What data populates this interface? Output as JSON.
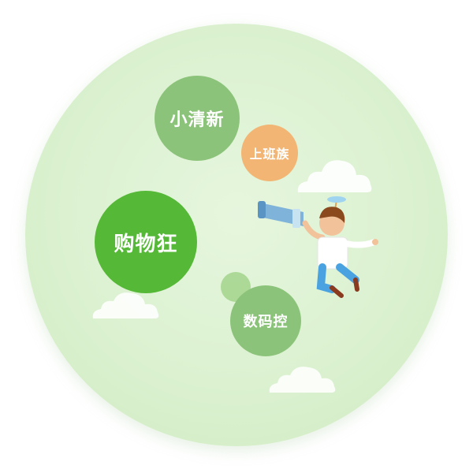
{
  "bubbles": {
    "xiaoqingxin": "小清新",
    "shangbanzu": "上班族",
    "gouwukuang": "购物狂",
    "shumakong": "数码控"
  },
  "colors": {
    "background_disc": "#d9f0cf",
    "bubble_green_light": "#8cc37a",
    "bubble_green_strong": "#55b837",
    "bubble_orange": "#f2b574"
  },
  "icons": [
    "cloud-icon",
    "telescope-person-illustration"
  ]
}
